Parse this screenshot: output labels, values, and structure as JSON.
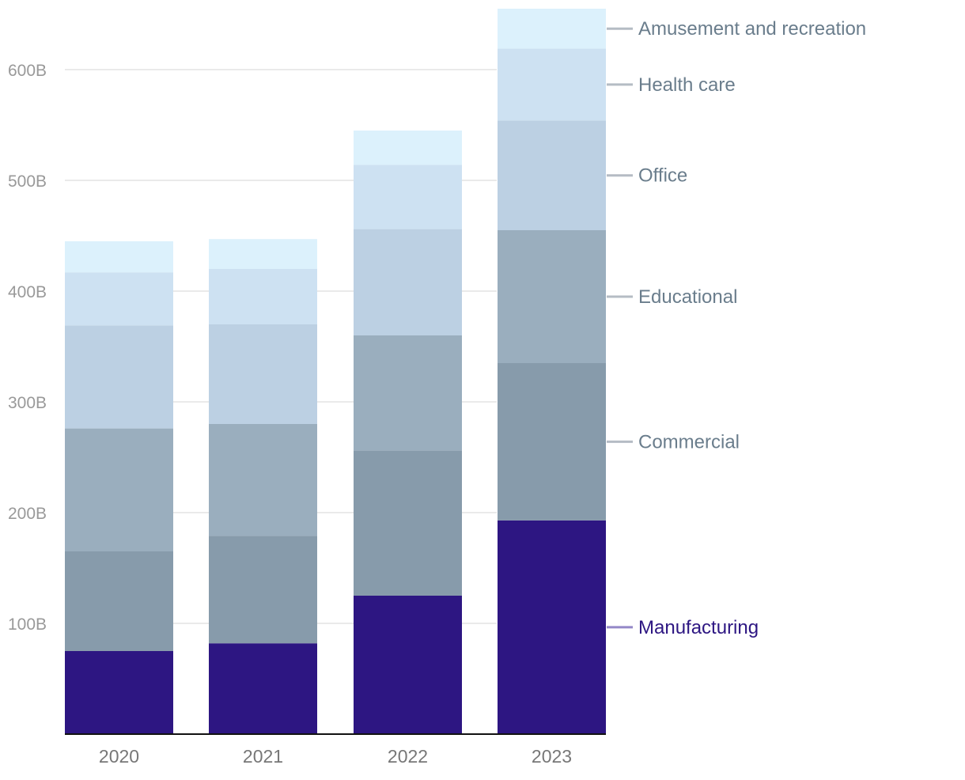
{
  "chart_data": {
    "type": "bar",
    "stacked": true,
    "title": "",
    "xlabel": "",
    "ylabel": "",
    "ylim": [
      0,
      650
    ],
    "y_ticks": [
      100,
      200,
      300,
      400,
      500,
      600
    ],
    "y_tick_labels": [
      "100B",
      "200B",
      "300B",
      "400B",
      "500B",
      "600B"
    ],
    "categories": [
      "2020",
      "2021",
      "2022",
      "2023"
    ],
    "grid": true,
    "legend": "right (direct labels)",
    "highlight_series": "Manufacturing",
    "series": [
      {
        "name": "Manufacturing",
        "color": "#2d1682",
        "label_color": "#2d1682",
        "leader_color": "#9488c8",
        "values": [
          75,
          82,
          125,
          193
        ]
      },
      {
        "name": "Commercial",
        "color": "#879bab",
        "label_color": "#6a7d8c",
        "leader_color": "#b5bcc4",
        "values": [
          90,
          97,
          131,
          142
        ]
      },
      {
        "name": "Educational",
        "color": "#9aaebe",
        "label_color": "#6a7d8c",
        "leader_color": "#b5bcc4",
        "values": [
          111,
          101,
          104,
          120
        ]
      },
      {
        "name": "Office",
        "color": "#bcd0e3",
        "label_color": "#6a7d8c",
        "leader_color": "#b5bcc4",
        "values": [
          93,
          90,
          96,
          99
        ]
      },
      {
        "name": "Health care",
        "color": "#cde1f2",
        "label_color": "#6a7d8c",
        "leader_color": "#b5bcc4",
        "values": [
          48,
          50,
          58,
          65
        ]
      },
      {
        "name": "Amusement and recreation",
        "color": "#dcf1fc",
        "label_color": "#6a7d8c",
        "leader_color": "#b5bcc4",
        "values": [
          28,
          27,
          31,
          36
        ]
      }
    ]
  }
}
